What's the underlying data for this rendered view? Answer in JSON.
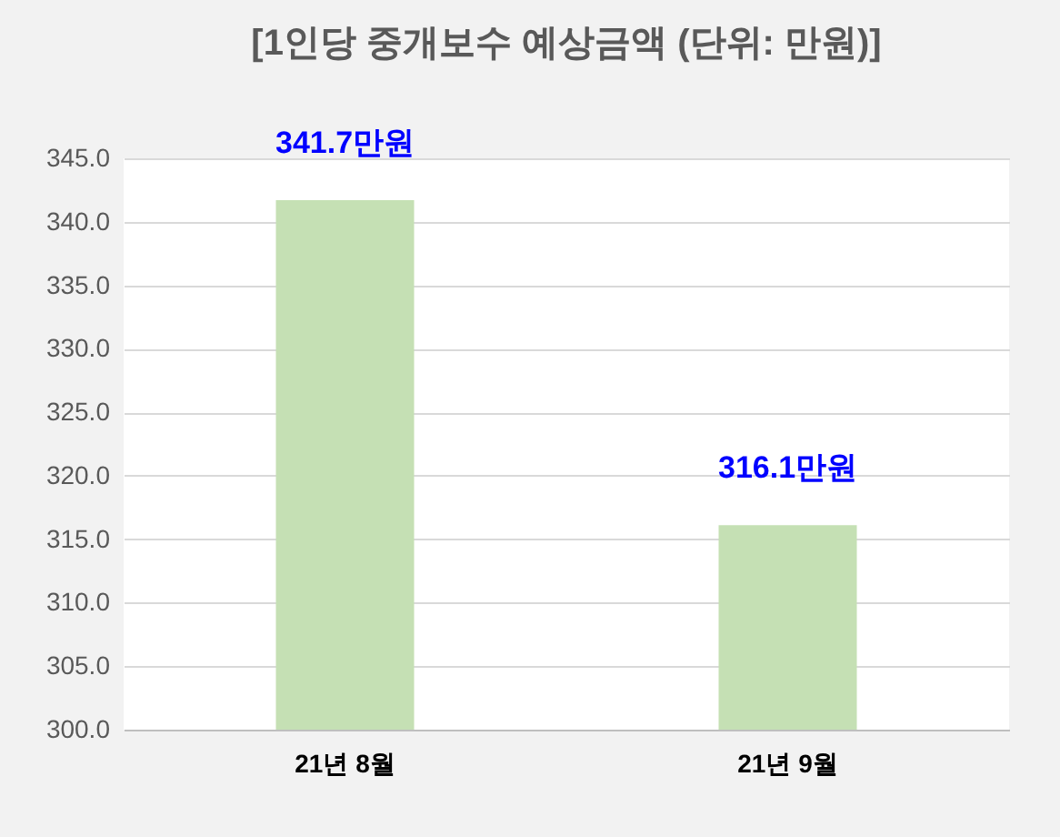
{
  "chart_data": {
    "type": "bar",
    "title": "[1인당 중개보수 예상금액 (단위: 만원)]",
    "categories": [
      "21년 8월",
      "21년 9월"
    ],
    "values": [
      341.7,
      316.1
    ],
    "value_labels": [
      "341.7만원",
      "316.1만원"
    ],
    "color": "#c5e0b4",
    "ylim": [
      300,
      345
    ],
    "yticks": [
      {
        "value": 300,
        "label": "300.0"
      },
      {
        "value": 305,
        "label": "305.0"
      },
      {
        "value": 310,
        "label": "310.0"
      },
      {
        "value": 315,
        "label": "315.0"
      },
      {
        "value": 320,
        "label": "320.0"
      },
      {
        "value": 325,
        "label": "325.0"
      },
      {
        "value": 330,
        "label": "330.0"
      },
      {
        "value": 335,
        "label": "335.0"
      },
      {
        "value": 340,
        "label": "340.0"
      },
      {
        "value": 345,
        "label": "345.0"
      }
    ],
    "grid": true
  }
}
